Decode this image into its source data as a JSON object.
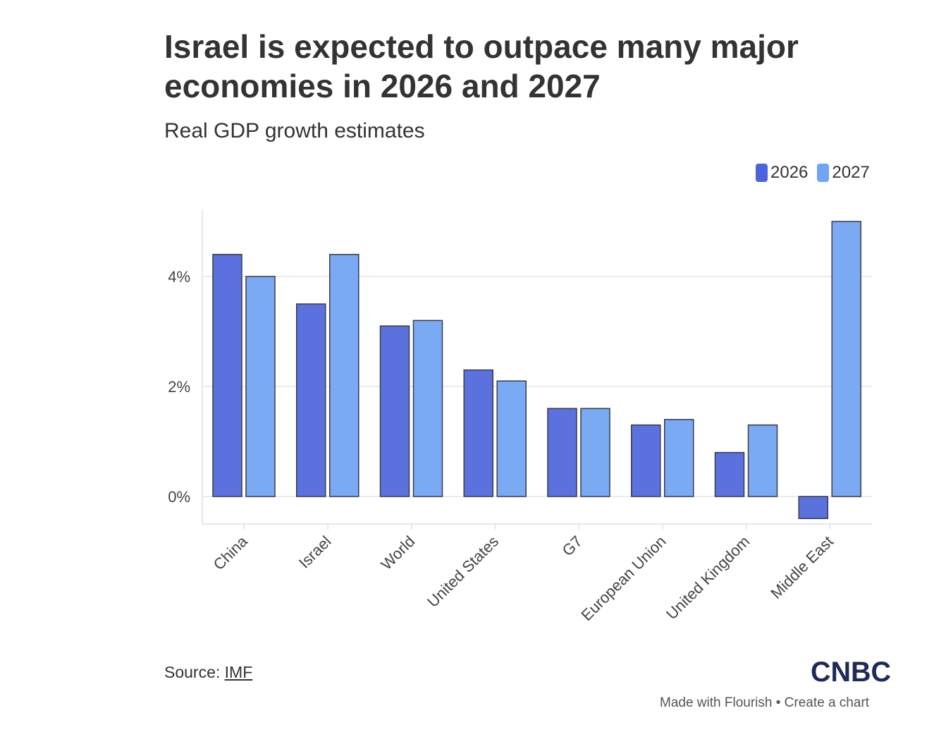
{
  "header": {
    "title": "Israel is expected to outpace many major economies in 2026 and 2027",
    "subtitle": "Real GDP growth estimates"
  },
  "legend": [
    {
      "label": "2026",
      "color": "#4b63dc"
    },
    {
      "label": "2027",
      "color": "#6fa5f3"
    }
  ],
  "chart_data": {
    "type": "bar",
    "title": "Israel is expected to outpace many major economies in 2026 and 2027",
    "subtitle": "Real GDP growth estimates",
    "xlabel": "",
    "ylabel": "",
    "categories": [
      "China",
      "Israel",
      "World",
      "United States",
      "G7",
      "European Union",
      "United Kingdom",
      "Middle East"
    ],
    "series": [
      {
        "name": "2026",
        "color": "#5b72de",
        "values": [
          4.4,
          3.5,
          3.1,
          2.3,
          1.6,
          1.3,
          0.8,
          -0.4
        ]
      },
      {
        "name": "2027",
        "color": "#7aaaf4",
        "values": [
          4.0,
          4.4,
          3.2,
          2.1,
          1.6,
          1.4,
          1.3,
          5.0
        ]
      }
    ],
    "yticks": [
      {
        "value": 0,
        "label": "0%"
      },
      {
        "value": 2,
        "label": "2%"
      },
      {
        "value": 4,
        "label": "4%"
      }
    ],
    "ylim": [
      -0.5,
      5.2
    ],
    "grid": true,
    "legend_position": "top-right"
  },
  "footer": {
    "source_prefix": "Source: ",
    "source_link": "IMF",
    "brand": "CNBC",
    "credit": "Made with Flourish • Create a chart"
  }
}
